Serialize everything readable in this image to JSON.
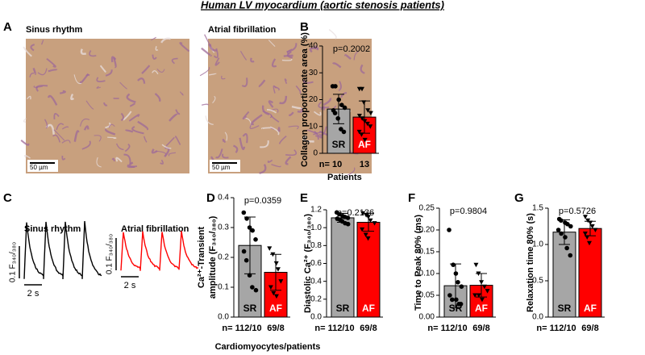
{
  "title": "Human LV myocardium (aortic stenosis patients)",
  "panel_labels": [
    "A",
    "B",
    "C",
    "D",
    "E",
    "F",
    "G"
  ],
  "histology": [
    {
      "label": "Sinus rhythm",
      "scale": "50 µm"
    },
    {
      "label": "Atrial fibrillation",
      "scale": "50 µm"
    }
  ],
  "traces": [
    {
      "label": "Sinus rhythm",
      "color": "#000000",
      "y_scale": "0.1 F₃₄₀/₃₈₀",
      "x_scale": "2 s"
    },
    {
      "label": "Atrial fibrillation",
      "color": "#ff0000",
      "y_scale": "0.1 F₃₄₀/₃₈₀",
      "x_scale": "2 s"
    }
  ],
  "x_group_label": "Cardiomyocytes/patients",
  "chart_data": [
    {
      "type": "bar",
      "ylabel": "Collagen proportionate area (%)",
      "annotation": "p=0.2002",
      "categories": [
        "SR",
        "AF"
      ],
      "colors": [
        "#a6a6a6",
        "#ff0000"
      ],
      "markers": [
        "circle",
        "triangle"
      ],
      "values": [
        16.5,
        13.5
      ],
      "errors": [
        5.5,
        6
      ],
      "points": [
        [
          25,
          25,
          20,
          18,
          17,
          16,
          15,
          13,
          9,
          8
        ],
        [
          24,
          24,
          19,
          16,
          15,
          14,
          13,
          12,
          11,
          10,
          8,
          7,
          5
        ]
      ],
      "n_labels": [
        "n= 10",
        "13"
      ],
      "group_label": "Patients",
      "ylim": [
        0,
        40
      ],
      "yticks": [
        0,
        10,
        20,
        30,
        40
      ]
    },
    {
      "type": "bar",
      "ylabel": [
        "Ca²⁺-Transient",
        "amplitude (F₃₄₀/₃₈₀)"
      ],
      "annotation": "p=0.0359",
      "categories": [
        "SR",
        "AF"
      ],
      "colors": [
        "#a6a6a6",
        "#ff0000"
      ],
      "markers": [
        "circle",
        "triangle"
      ],
      "values": [
        0.24,
        0.15
      ],
      "errors": [
        0.095,
        0.06
      ],
      "points": [
        [
          0.35,
          0.33,
          0.3,
          0.29,
          0.26,
          0.22,
          0.19,
          0.14,
          0.1,
          0.09
        ],
        [
          0.23,
          0.21,
          0.18,
          0.16,
          0.12,
          0.1,
          0.08,
          0.07
        ]
      ],
      "n_labels": [
        "n= 112/10",
        "69/8"
      ],
      "ylim": [
        0,
        0.4
      ],
      "yticks": [
        {
          "value": 0,
          "label": "0.0"
        },
        0.1,
        0.2,
        0.3,
        0.4
      ]
    },
    {
      "type": "bar",
      "ylabel": "Diastolic Ca²⁺ (F₃₄₀/₃₈₀)",
      "annotation": "p=0.2136",
      "categories": [
        "SR",
        "AF"
      ],
      "colors": [
        "#a6a6a6",
        "#ff0000"
      ],
      "markers": [
        "circle",
        "triangle"
      ],
      "values": [
        1.11,
        1.06
      ],
      "errors": [
        0.05,
        0.1
      ],
      "points": [
        [
          1.17,
          1.15,
          1.13,
          1.12,
          1.11,
          1.1,
          1.09,
          1.07,
          1.05,
          1.04
        ],
        [
          1.16,
          1.14,
          1.12,
          1.08,
          1.05,
          0.98,
          0.92,
          0.88
        ]
      ],
      "n_labels": [
        "n= 112/10",
        "69/8"
      ],
      "ylim": [
        0,
        1.2
      ],
      "yticks": [
        {
          "value": 0,
          "label": "0.0"
        },
        0.2,
        0.4,
        0.6,
        0.8,
        {
          "value": 1,
          "label": "1.0"
        },
        1.2
      ]
    },
    {
      "type": "bar",
      "ylabel": "Time to Peak 80% (ms)",
      "annotation": "p=0.9804",
      "categories": [
        "SR",
        "AF"
      ],
      "colors": [
        "#a6a6a6",
        "#ff0000"
      ],
      "markers": [
        "circle",
        "triangle"
      ],
      "values": [
        0.072,
        0.073
      ],
      "errors": [
        0.05,
        0.027
      ],
      "points": [
        [
          0.2,
          0.12,
          0.1,
          0.08,
          0.07,
          0.05,
          0.04,
          0.04,
          0.03,
          0.03
        ],
        [
          0.12,
          0.1,
          0.08,
          0.07,
          0.06,
          0.05,
          0.05,
          0.04
        ]
      ],
      "n_labels": [
        "n= 112/10",
        "69/8"
      ],
      "ylim": [
        0,
        0.25
      ],
      "yticks": [
        {
          "value": 0,
          "label": "0.00"
        },
        0.05,
        {
          "value": 0.1,
          "label": "0.10"
        },
        0.15,
        {
          "value": 0.2,
          "label": "0.20"
        },
        0.25
      ]
    },
    {
      "type": "bar",
      "ylabel": "Relaxation time 80% (s)",
      "annotation": "p=0.5726",
      "categories": [
        "SR",
        "AF"
      ],
      "colors": [
        "#a6a6a6",
        "#ff0000"
      ],
      "markers": [
        "circle",
        "triangle"
      ],
      "values": [
        1.17,
        1.22
      ],
      "errors": [
        0.17,
        0.1
      ],
      "points": [
        [
          1.35,
          1.33,
          1.3,
          1.28,
          1.25,
          1.2,
          1.15,
          1.1,
          0.95,
          0.85
        ],
        [
          1.38,
          1.33,
          1.3,
          1.25,
          1.2,
          1.15,
          1.1,
          1.02
        ]
      ],
      "n_labels": [
        "n= 112/10",
        "69/8"
      ],
      "ylim": [
        0,
        1.5
      ],
      "yticks": [
        {
          "value": 0,
          "label": "0.0"
        },
        0.5,
        {
          "value": 1,
          "label": "1.0"
        },
        1.5
      ]
    }
  ]
}
